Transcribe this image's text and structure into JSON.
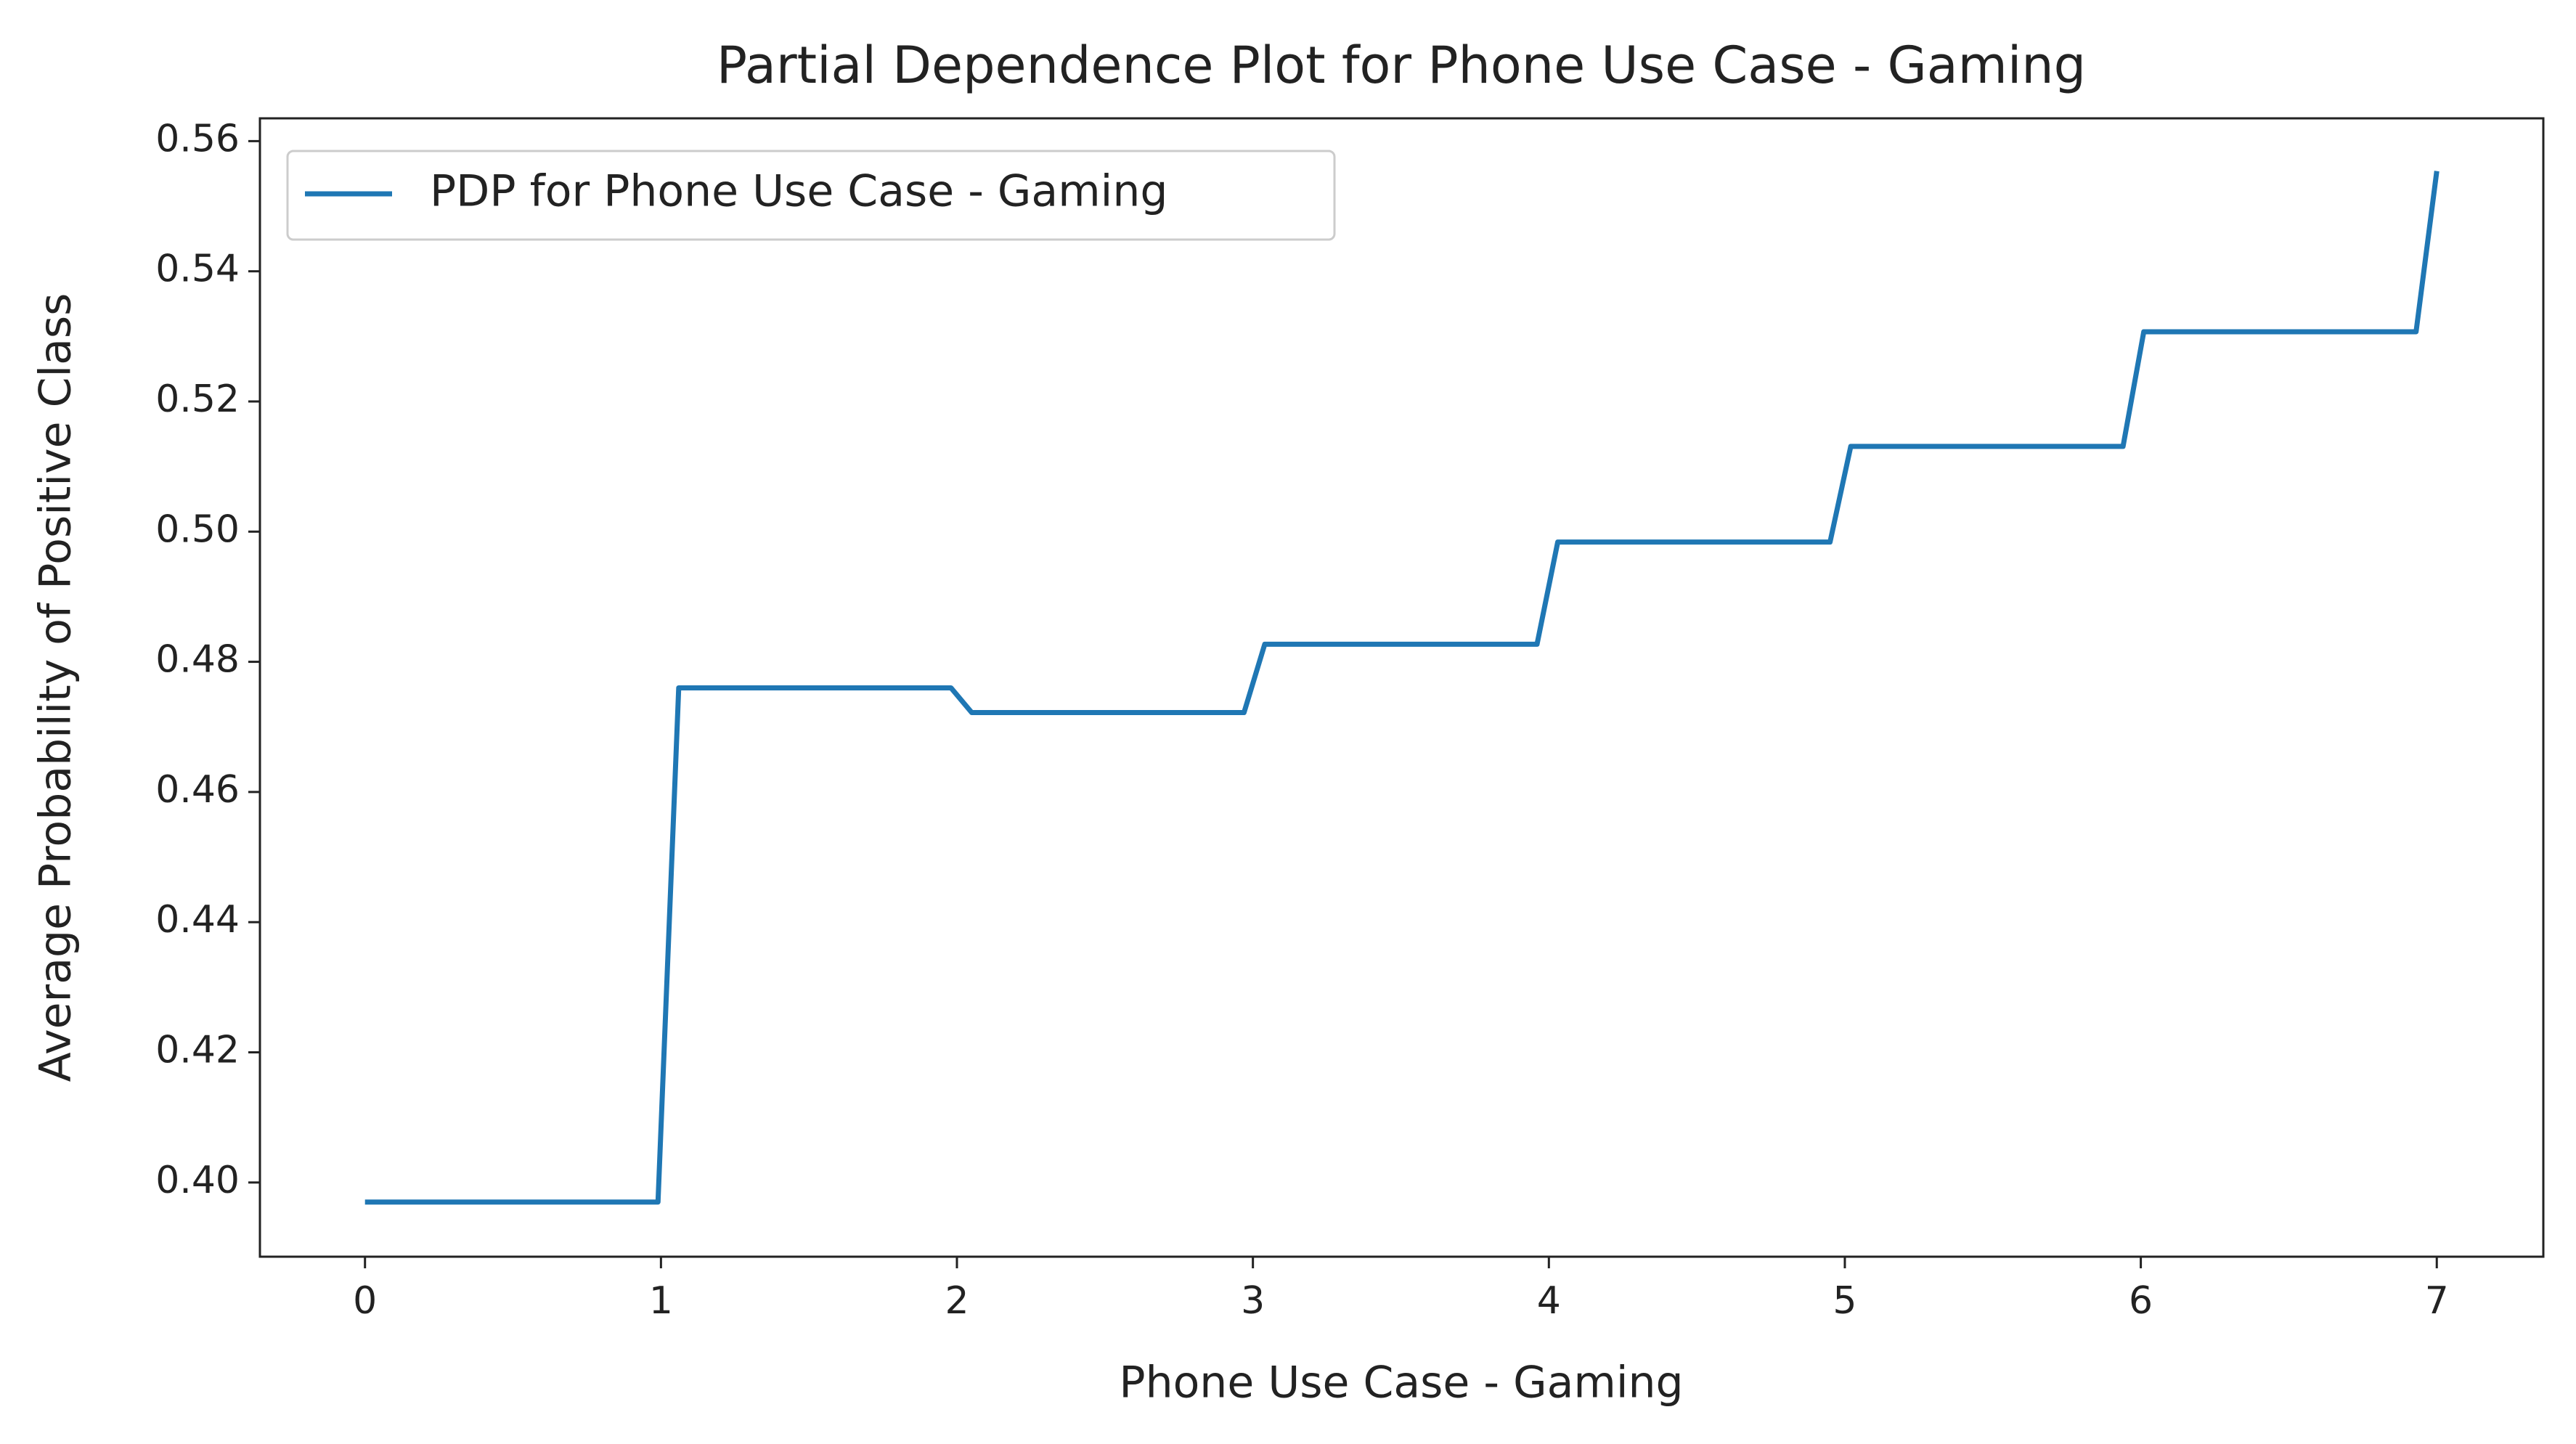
{
  "chart_data": {
    "type": "line",
    "title": "Partial Dependence Plot for Phone Use Case - Gaming",
    "x_label": "Phone Use Case - Gaming",
    "y_label": "Average Probability of Positive Class",
    "x": [
      0,
      0.99,
      1.06,
      1.98,
      2.05,
      2.97,
      3.04,
      3.96,
      4.03,
      4.95,
      5.02,
      5.94,
      6.01,
      6.93,
      7.0
    ],
    "series": [
      {
        "name": "PDP for Phone Use Case - Gaming",
        "color": "#1f77b4",
        "values": [
          0.397,
          0.397,
          0.476,
          0.476,
          0.4722,
          0.4722,
          0.4827,
          0.4827,
          0.4984,
          0.4984,
          0.5131,
          0.5131,
          0.5307,
          0.5307,
          0.5554
        ]
      }
    ],
    "xlim": [
      -0.355,
      7.36
    ],
    "ylim": [
      0.3886,
      0.5635
    ],
    "xticks": [
      0,
      1,
      2,
      3,
      4,
      5,
      6,
      7
    ],
    "yticks": [
      {
        "value": 0.4,
        "label": "0.40"
      },
      {
        "value": 0.42,
        "label": "0.42"
      },
      {
        "value": 0.44,
        "label": "0.44"
      },
      {
        "value": 0.46,
        "label": "0.46"
      },
      {
        "value": 0.48,
        "label": "0.48"
      },
      {
        "value": 0.5,
        "label": "0.50"
      },
      {
        "value": 0.52,
        "label": "0.52"
      },
      {
        "value": 0.54,
        "label": "0.54"
      },
      {
        "value": 0.56,
        "label": "0.56"
      }
    ],
    "legend": "upper left",
    "grid": false
  }
}
